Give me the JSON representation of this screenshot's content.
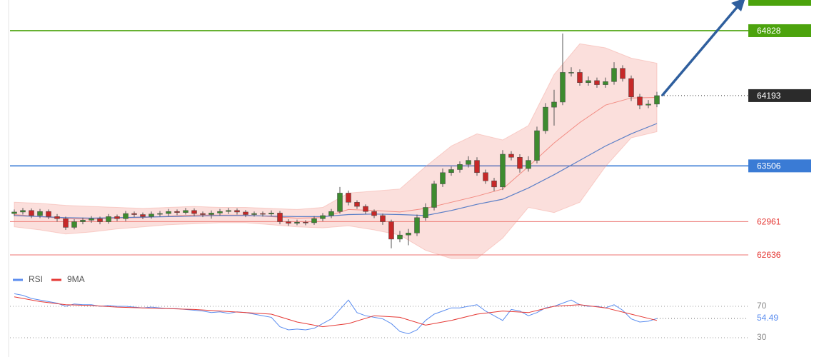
{
  "chart_data": [
    {
      "type": "candlestick",
      "xlim": [
        0,
        75
      ],
      "ylim": [
        62510,
        65128
      ],
      "open": [
        63040,
        63055,
        63070,
        63020,
        63060,
        63010,
        62990,
        62905,
        62960,
        62975,
        62990,
        62960,
        63010,
        62990,
        63040,
        63030,
        63010,
        63035,
        63040,
        63060,
        63050,
        63070,
        63040,
        63030,
        63045,
        63060,
        63070,
        63055,
        63030,
        63040,
        63035,
        63045,
        62960,
        62945,
        62955,
        62950,
        62990,
        63020,
        63060,
        63240,
        63150,
        63110,
        63060,
        63020,
        62960,
        62790,
        62830,
        62850,
        63000,
        63100,
        63330,
        63440,
        63470,
        63520,
        63560,
        63440,
        63360,
        63300,
        63620,
        63590,
        63480,
        63560,
        63850,
        64080,
        64130,
        64420,
        64420,
        64320,
        64340,
        64300,
        64330,
        64460,
        64360,
        64180,
        64100,
        64110
      ],
      "high": [
        63080,
        63095,
        63090,
        63085,
        63080,
        63035,
        63010,
        62985,
        63000,
        63015,
        63010,
        63035,
        63030,
        63065,
        63060,
        63050,
        63060,
        63065,
        63085,
        63080,
        63095,
        63090,
        63060,
        63070,
        63085,
        63095,
        63090,
        63075,
        63060,
        63060,
        63070,
        63065,
        62985,
        62980,
        62975,
        63015,
        63045,
        63085,
        63300,
        63265,
        63170,
        63130,
        63080,
        63040,
        62980,
        62870,
        62890,
        63030,
        63140,
        63360,
        63480,
        63500,
        63550,
        63600,
        63590,
        63470,
        63390,
        63660,
        63650,
        63620,
        63600,
        63890,
        64120,
        64250,
        64800,
        64470,
        64450,
        64380,
        64370,
        64370,
        64520,
        64490,
        64390,
        64210,
        64150,
        64230
      ],
      "low": [
        63015,
        63030,
        62995,
        62995,
        62985,
        62960,
        62880,
        62885,
        62935,
        62950,
        62935,
        62940,
        62965,
        62965,
        63005,
        62985,
        62990,
        63010,
        63015,
        63025,
        63030,
        63015,
        63005,
        62990,
        63020,
        63035,
        63030,
        63005,
        63010,
        63010,
        63015,
        62935,
        62920,
        62925,
        62925,
        62930,
        62965,
        62995,
        63040,
        63120,
        63085,
        63035,
        62995,
        62930,
        62700,
        62760,
        62730,
        62820,
        62970,
        63070,
        63300,
        63410,
        63440,
        63490,
        63410,
        63330,
        63260,
        63270,
        63560,
        63440,
        63450,
        63530,
        63820,
        63900,
        64100,
        64380,
        64290,
        64290,
        64270,
        64270,
        64300,
        64330,
        64140,
        64060,
        64070,
        64080
      ],
      "close": [
        63055,
        63070,
        63020,
        63060,
        63010,
        62990,
        62905,
        62960,
        62975,
        62990,
        62960,
        63010,
        62990,
        63040,
        63030,
        63010,
        63035,
        63040,
        63060,
        63050,
        63070,
        63040,
        63030,
        63045,
        63060,
        63070,
        63055,
        63030,
        63040,
        63035,
        63045,
        62960,
        62945,
        62955,
        62950,
        62990,
        63020,
        63060,
        63240,
        63150,
        63110,
        63060,
        63020,
        62960,
        62790,
        62830,
        62850,
        63000,
        63100,
        63330,
        63440,
        63470,
        63520,
        63560,
        63440,
        63360,
        63300,
        63620,
        63590,
        63480,
        63560,
        63850,
        64080,
        64130,
        64420,
        64420,
        64320,
        64340,
        64300,
        64330,
        64460,
        64360,
        64180,
        64100,
        64110,
        64193
      ],
      "up_color": "#3d8b2f",
      "down_color": "#c62828",
      "bands": {
        "x": [
          0,
          3,
          6,
          9,
          12,
          15,
          18,
          21,
          24,
          27,
          30,
          33,
          36,
          39,
          42,
          45,
          48,
          51,
          54,
          57,
          60,
          63,
          66,
          69,
          72,
          75
        ],
        "upper": [
          63150,
          63140,
          63120,
          63110,
          63100,
          63090,
          63100,
          63110,
          63100,
          63100,
          63090,
          63080,
          63100,
          63240,
          63260,
          63280,
          63500,
          63700,
          63820,
          63760,
          63900,
          64400,
          64700,
          64660,
          64560,
          64510
        ],
        "lower": [
          62910,
          62880,
          62840,
          62860,
          62890,
          62910,
          62930,
          62940,
          62950,
          62950,
          62930,
          62910,
          62900,
          62920,
          62880,
          62830,
          62680,
          62600,
          62600,
          62800,
          63100,
          63050,
          63150,
          63500,
          63780,
          63840
        ],
        "middle": [
          63030,
          63010,
          62990,
          62985,
          62995,
          63000,
          63015,
          63025,
          63025,
          63025,
          63010,
          62995,
          63000,
          63080,
          63070,
          63055,
          63090,
          63150,
          63210,
          63280,
          63500,
          63730,
          63930,
          64100,
          64170,
          64175
        ],
        "color": "#f28b82"
      },
      "ma": {
        "x": [
          0,
          3,
          6,
          9,
          12,
          15,
          18,
          21,
          24,
          27,
          30,
          33,
          36,
          39,
          42,
          45,
          48,
          51,
          54,
          57,
          60,
          63,
          66,
          69,
          72,
          75
        ],
        "values": [
          63020,
          63010,
          63000,
          62995,
          63000,
          63005,
          63010,
          63015,
          63020,
          63020,
          63015,
          63010,
          63010,
          63030,
          63035,
          63030,
          63020,
          63070,
          63130,
          63180,
          63290,
          63420,
          63560,
          63700,
          63820,
          63920
        ],
        "color": "#5b7fc7"
      },
      "levels": [
        {
          "value": 64828,
          "color": "#4ca30d",
          "style": "tag"
        },
        {
          "value": 63506,
          "color": "#3a7bd5",
          "style": "tag"
        },
        {
          "value": 62961,
          "color": "#e53935",
          "style": "text"
        },
        {
          "value": 62636,
          "color": "#e53935",
          "style": "text"
        }
      ],
      "last_color": "#2b2b2b"
    },
    {
      "type": "line",
      "xlim": [
        0,
        75
      ],
      "ylim": [
        10,
        100
      ],
      "yticks": [
        70,
        30
      ],
      "series": [
        {
          "name": "RSI",
          "color": "#5b8def",
          "values": [
            86,
            84,
            80,
            78,
            76,
            74,
            70,
            73,
            72,
            72,
            70,
            71,
            70,
            70,
            69,
            68,
            69,
            68,
            67,
            67,
            66,
            65,
            64,
            62,
            63,
            61,
            63,
            62,
            60,
            58,
            56,
            44,
            40,
            41,
            40,
            42,
            48,
            54,
            66,
            78,
            62,
            58,
            56,
            54,
            48,
            38,
            35,
            40,
            52,
            60,
            64,
            68,
            68,
            70,
            72,
            64,
            58,
            52,
            66,
            64,
            58,
            62,
            68,
            70,
            74,
            78,
            72,
            70,
            70,
            68,
            72,
            65,
            54,
            50,
            51,
            54.49
          ]
        },
        {
          "name": "9MA",
          "color": "#e53935",
          "x": [
            0,
            3,
            6,
            9,
            12,
            15,
            18,
            21,
            24,
            27,
            30,
            33,
            36,
            39,
            42,
            45,
            48,
            51,
            54,
            57,
            60,
            63,
            66,
            69,
            72,
            75
          ],
          "values": [
            82,
            76,
            72,
            71,
            69,
            68,
            67,
            66,
            64,
            62,
            60,
            50,
            44,
            48,
            58,
            56,
            46,
            52,
            60,
            64,
            62,
            70,
            72,
            68,
            60,
            52
          ]
        }
      ]
    }
  ]
}
